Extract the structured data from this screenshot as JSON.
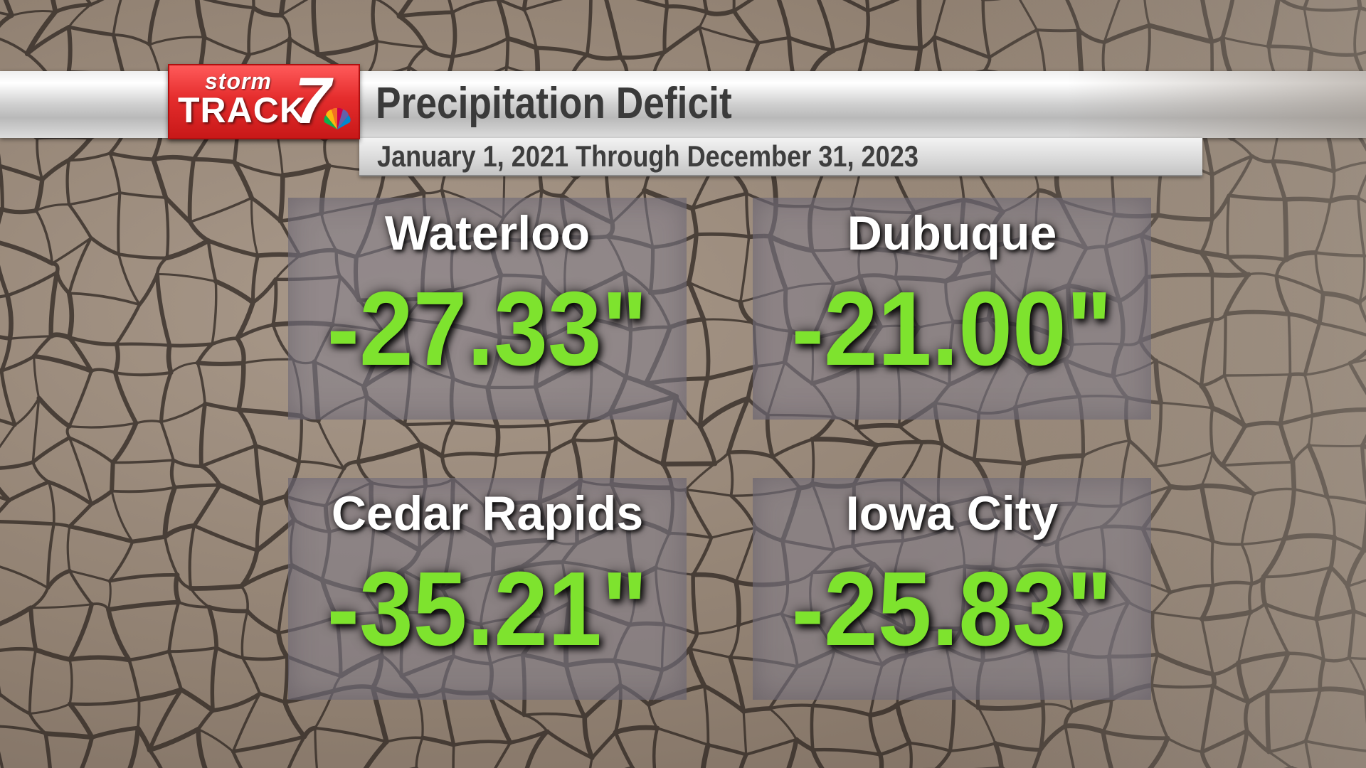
{
  "logo": {
    "storm_text": "storm",
    "track_text": "TRACK",
    "channel_number": "7"
  },
  "header": {
    "title": "Precipitation Deficit",
    "subtitle": "January 1, 2021 Through December 31, 2023"
  },
  "cities": [
    {
      "name": "Waterloo",
      "deficit": "-27.33\""
    },
    {
      "name": "Dubuque",
      "deficit": "-21.00\""
    },
    {
      "name": "Cedar Rapids",
      "deficit": "-35.21\""
    },
    {
      "name": "Iowa City",
      "deficit": "-25.83\""
    }
  ],
  "colors": {
    "value_green": "#7ee32e",
    "logo_red": "#e52d2d",
    "title_text": "#3a3a3a"
  }
}
